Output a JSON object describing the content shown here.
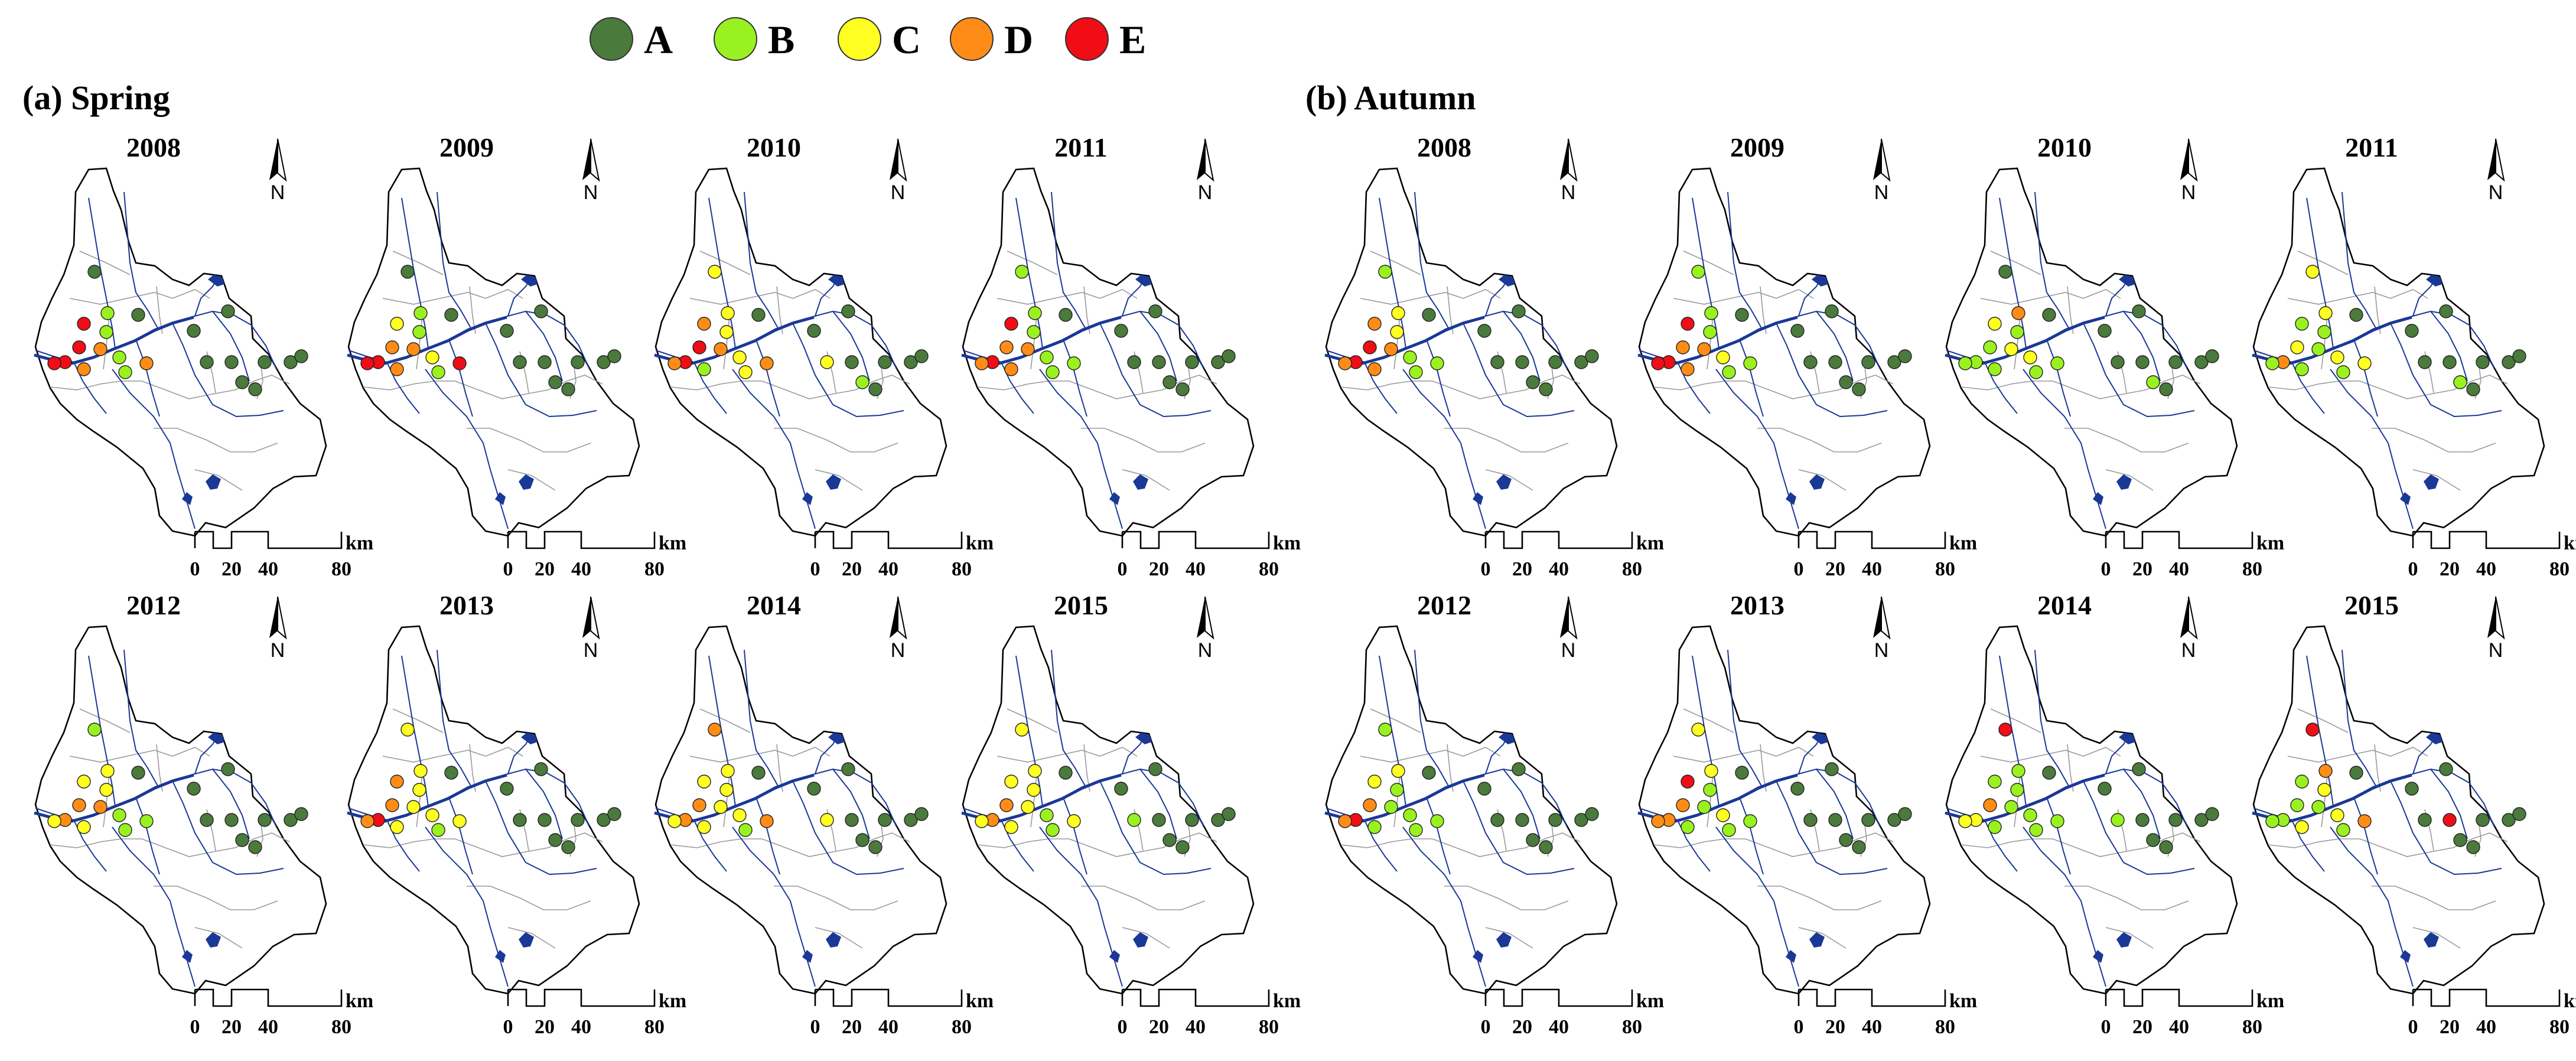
{
  "legend": {
    "items": [
      {
        "label": "A",
        "color": "#4a7a3c"
      },
      {
        "label": "B",
        "color": "#99f21f"
      },
      {
        "label": "C",
        "color": "#ffff22"
      },
      {
        "label": "D",
        "color": "#ff8c16"
      },
      {
        "label": "E",
        "color": "#f00d16"
      }
    ]
  },
  "colors": {
    "river": "#1a3896",
    "subbasin_border": "#9a9a9a",
    "basin_outline": "#000000"
  },
  "panels": [
    {
      "title": "(a) Spring",
      "years": [
        "2008",
        "2009",
        "2010",
        "2011",
        "2012",
        "2013",
        "2014",
        "2015"
      ]
    },
    {
      "title": "(b) Autumn",
      "years": [
        "2008",
        "2009",
        "2010",
        "2011",
        "2012",
        "2013",
        "2014",
        "2015"
      ]
    }
  ],
  "north_label": "N",
  "scale_bar": {
    "unit": "km",
    "ticks": [
      "0",
      "20",
      "40",
      "80"
    ]
  },
  "station_grades": {
    "spring": {
      "2008": [
        "A",
        "B",
        "E",
        "E",
        "B",
        "D",
        "E",
        "E",
        "B",
        "D",
        "B",
        "D",
        "A",
        "A",
        "A",
        "A",
        "A",
        "A",
        "A",
        "A",
        "A",
        "A"
      ],
      "2009": [
        "A",
        "B",
        "C",
        "D",
        "B",
        "D",
        "E",
        "E",
        "C",
        "D",
        "B",
        "E",
        "A",
        "A",
        "A",
        "A",
        "A",
        "A",
        "A",
        "A",
        "A",
        "A"
      ],
      "2010": [
        "C",
        "C",
        "D",
        "E",
        "C",
        "D",
        "E",
        "D",
        "C",
        "B",
        "C",
        "D",
        "A",
        "A",
        "A",
        "C",
        "A",
        "A",
        "A",
        "A",
        "A",
        "B"
      ],
      "2011": [
        "B",
        "B",
        "E",
        "D",
        "B",
        "D",
        "E",
        "D",
        "B",
        "D",
        "B",
        "B",
        "A",
        "A",
        "A",
        "A",
        "A",
        "A",
        "A",
        "A",
        "A",
        "A"
      ],
      "2012": [
        "B",
        "C",
        "C",
        "D",
        "C",
        "D",
        "D",
        "C",
        "B",
        "C",
        "B",
        "B",
        "A",
        "A",
        "A",
        "A",
        "A",
        "A",
        "A",
        "A",
        "A",
        "A"
      ],
      "2013": [
        "C",
        "C",
        "D",
        "D",
        "C",
        "C",
        "E",
        "D",
        "C",
        "C",
        "B",
        "C",
        "A",
        "A",
        "A",
        "A",
        "A",
        "A",
        "A",
        "A",
        "A",
        "A"
      ],
      "2014": [
        "D",
        "C",
        "C",
        "D",
        "C",
        "C",
        "D",
        "C",
        "C",
        "C",
        "B",
        "D",
        "A",
        "A",
        "A",
        "C",
        "A",
        "A",
        "A",
        "A",
        "A",
        "A"
      ],
      "2015": [
        "C",
        "C",
        "C",
        "D",
        "C",
        "C",
        "D",
        "C",
        "B",
        "C",
        "B",
        "C",
        "A",
        "A",
        "A",
        "B",
        "A",
        "A",
        "A",
        "A",
        "A",
        "A"
      ]
    },
    "autumn": {
      "2008": [
        "B",
        "C",
        "D",
        "E",
        "C",
        "D",
        "E",
        "D",
        "B",
        "D",
        "B",
        "B",
        "A",
        "A",
        "A",
        "A",
        "A",
        "A",
        "A",
        "A",
        "A",
        "A"
      ],
      "2009": [
        "B",
        "B",
        "E",
        "D",
        "B",
        "D",
        "E",
        "E",
        "C",
        "D",
        "B",
        "B",
        "A",
        "A",
        "A",
        "A",
        "A",
        "A",
        "A",
        "A",
        "A",
        "A"
      ],
      "2010": [
        "A",
        "D",
        "C",
        "B",
        "B",
        "C",
        "B",
        "B",
        "C",
        "B",
        "B",
        "B",
        "A",
        "A",
        "A",
        "A",
        "A",
        "A",
        "A",
        "A",
        "A",
        "B"
      ],
      "2011": [
        "C",
        "C",
        "B",
        "C",
        "B",
        "B",
        "D",
        "B",
        "C",
        "B",
        "B",
        "C",
        "A",
        "A",
        "A",
        "A",
        "A",
        "A",
        "A",
        "A",
        "A",
        "B"
      ],
      "2012": [
        "B",
        "C",
        "C",
        "D",
        "B",
        "B",
        "E",
        "D",
        "B",
        "B",
        "B",
        "B",
        "A",
        "A",
        "A",
        "A",
        "A",
        "A",
        "A",
        "A",
        "A",
        "A"
      ],
      "2013": [
        "C",
        "C",
        "E",
        "D",
        "B",
        "B",
        "D",
        "D",
        "C",
        "B",
        "B",
        "B",
        "A",
        "A",
        "A",
        "A",
        "A",
        "A",
        "A",
        "A",
        "A",
        "A"
      ],
      "2014": [
        "E",
        "B",
        "B",
        "D",
        "B",
        "B",
        "C",
        "C",
        "B",
        "B",
        "B",
        "B",
        "A",
        "A",
        "A",
        "B",
        "A",
        "A",
        "A",
        "A",
        "A",
        "A"
      ],
      "2015": [
        "E",
        "D",
        "B",
        "B",
        "C",
        "B",
        "B",
        "B",
        "C",
        "C",
        "B",
        "D",
        "A",
        "A",
        "A",
        "A",
        "E",
        "A",
        "A",
        "A",
        "A",
        "A"
      ]
    }
  }
}
